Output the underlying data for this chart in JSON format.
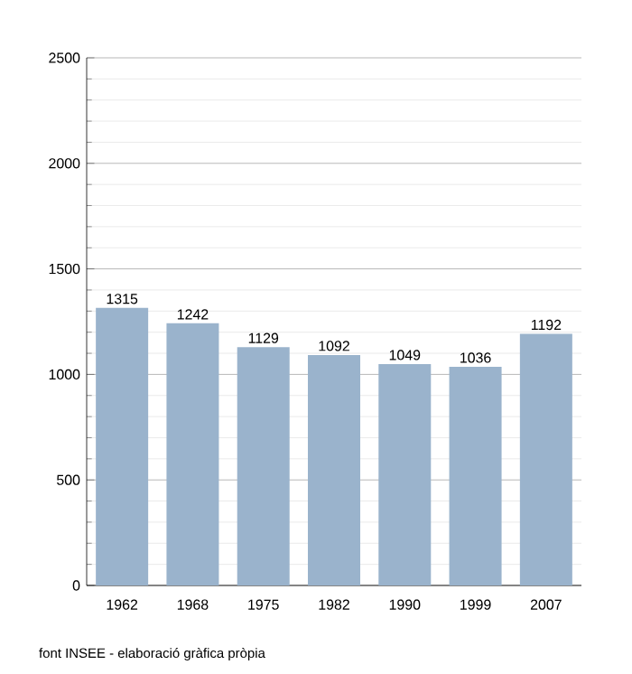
{
  "chart_data": {
    "type": "bar",
    "categories": [
      "1962",
      "1968",
      "1975",
      "1982",
      "1990",
      "1999",
      "2007"
    ],
    "values": [
      1315,
      1242,
      1129,
      1092,
      1049,
      1036,
      1192
    ],
    "color": "#9ab3cc",
    "data_labels": true,
    "ylim": [
      0,
      2500
    ],
    "yticks": [
      0,
      500,
      1000,
      1500,
      2000,
      2500
    ],
    "grid": "y",
    "annotations": [
      "font INSEE - elaboració gràfica pròpia"
    ]
  }
}
